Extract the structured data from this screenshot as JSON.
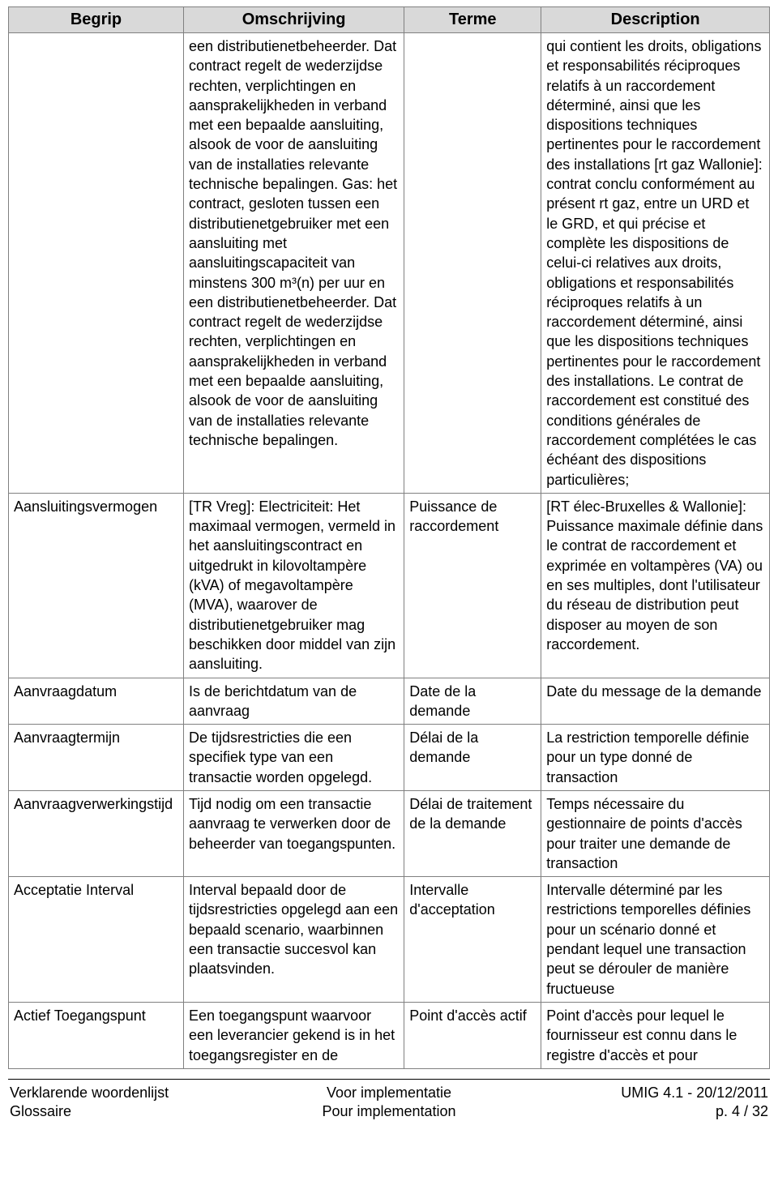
{
  "table": {
    "col_widths_pct": [
      23,
      29,
      18,
      30
    ],
    "header_bg": "#d9d9d9",
    "border_color": "#808080",
    "headers": [
      "Begrip",
      "Omschrijving",
      "Terme",
      "Description"
    ],
    "rows": [
      {
        "begrip": "",
        "omschrijving": "een distributienetbeheerder. Dat contract regelt de wederzijdse rechten, verplichtingen en aansprakelijkheden in verband met een bepaalde aansluiting, alsook de voor de aansluiting van de installaties relevante technische bepalingen.\nGas: het contract, gesloten tussen een distributienetgebruiker met een aansluiting met aansluitingscapaciteit van minstens 300 m³(n) per uur en een distributienetbeheerder. Dat contract regelt de wederzijdse rechten, verplichtingen en aansprakelijkheden in verband met een bepaalde aansluiting, alsook de voor de aansluiting van de installaties relevante technische bepalingen.",
        "terme": "",
        "description": "qui contient les droits, obligations et responsabilités réciproques relatifs à un raccordement déterminé, ainsi que les dispositions techniques pertinentes pour le raccordement des installations\n[rt gaz Wallonie]: contrat conclu conformément au présent rt gaz, entre un URD et le GRD, et qui précise et complète les dispositions de celui-ci relatives aux droits, obligations et responsabilités réciproques relatifs à un raccordement déterminé, ainsi que les dispositions techniques pertinentes pour le raccordement des installations. Le contrat de raccordement est constitué des conditions générales de raccordement complétées le cas échéant des dispositions particulières;"
      },
      {
        "begrip": "Aansluitingsvermogen",
        "omschrijving": "[TR Vreg]:\nElectriciteit: Het maximaal vermogen, vermeld in het aansluitingscontract en uitgedrukt in kilovoltampère (kVA) of megavoltampère (MVA), waarover de distributienetgebruiker mag beschikken door middel van zijn aansluiting.",
        "terme": "Puissance de raccordement",
        "description": "[RT élec-Bruxelles & Wallonie]: Puissance maximale définie dans le contrat de raccordement et exprimée en voltampères (VA) ou en ses multiples, dont l'utilisateur du réseau de distribution peut disposer au moyen de son raccordement."
      },
      {
        "begrip": "Aanvraagdatum",
        "omschrijving": "Is de berichtdatum van de aanvraag",
        "terme": "Date de la demande",
        "description": "Date du message de la demande"
      },
      {
        "begrip": "Aanvraagtermijn",
        "omschrijving": "De tijdsrestricties die een specifiek type van een transactie worden opgelegd.",
        "terme": "Délai de la demande",
        "description": "La restriction temporelle définie pour un type donné de transaction"
      },
      {
        "begrip": "Aanvraagverwerkingstijd",
        "omschrijving": "Tijd nodig om een transactie aanvraag te verwerken door de beheerder van toegangspunten.",
        "terme": "Délai de traitement de la demande",
        "description": "Temps nécessaire du gestionnaire de points d'accès pour traiter une demande de transaction"
      },
      {
        "begrip": "Acceptatie Interval",
        "omschrijving": "Interval bepaald door de tijdsrestricties opgelegd aan een bepaald scenario, waarbinnen een transactie succesvol kan plaatsvinden.",
        "terme": "Intervalle d'acceptation",
        "description": "Intervalle déterminé par les restrictions temporelles définies pour un scénario donné et pendant lequel une transaction peut se dérouler de manière fructueuse"
      },
      {
        "begrip": "Actief Toegangspunt",
        "omschrijving": "Een toegangspunt waarvoor een leverancier gekend is in het toegangsregister en de",
        "terme": "Point d'accès actif",
        "description": "Point d'accès pour lequel le fournisseur est connu dans le registre d'accès et pour"
      }
    ]
  },
  "footer": {
    "left_line1": "Verklarende woordenlijst",
    "left_line2": "Glossaire",
    "mid_line1": "Voor implementatie",
    "mid_line2": "Pour implementation",
    "right_line1": "UMIG 4.1 - 20/12/2011",
    "right_line2": "p. 4 / 32"
  }
}
